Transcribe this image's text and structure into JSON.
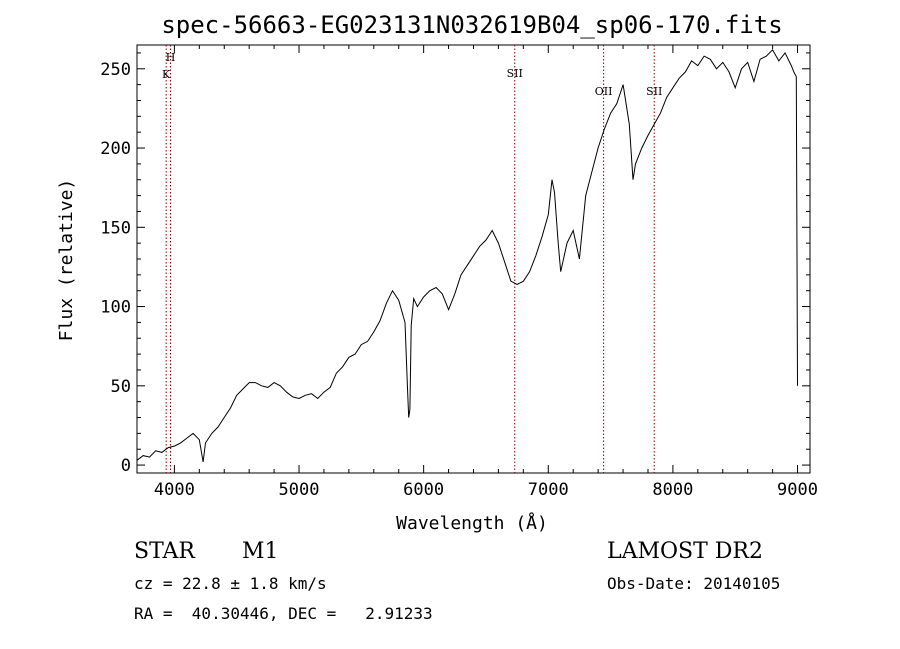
{
  "chart_data": {
    "type": "line",
    "title": "spec-56663-EG023131N032619B04_sp06-170.fits",
    "xlabel": "Wavelength (Å)",
    "ylabel": "Flux (relative)",
    "xlim": [
      3700,
      9100
    ],
    "ylim": [
      -5,
      265
    ],
    "x_ticks": [
      4000,
      5000,
      6000,
      7000,
      8000,
      9000
    ],
    "y_ticks": [
      0,
      50,
      100,
      150,
      200,
      250
    ],
    "series": [
      {
        "x": [
          3700,
          3750,
          3800,
          3850,
          3900,
          3950,
          4000,
          4050,
          4100,
          4150,
          4200,
          4230,
          4250,
          4300,
          4350,
          4400,
          4450,
          4500,
          4550,
          4600,
          4650,
          4700,
          4750,
          4800,
          4850,
          4900,
          4950,
          5000,
          5050,
          5100,
          5150,
          5200,
          5250,
          5300,
          5350,
          5400,
          5450,
          5500,
          5550,
          5600,
          5650,
          5700,
          5750,
          5800,
          5850,
          5870,
          5880,
          5890,
          5900,
          5920,
          5950,
          6000,
          6050,
          6100,
          6150,
          6200,
          6250,
          6300,
          6350,
          6400,
          6450,
          6500,
          6550,
          6600,
          6650,
          6700,
          6750,
          6800,
          6850,
          6900,
          6950,
          7000,
          7030,
          7050,
          7080,
          7100,
          7150,
          7200,
          7250,
          7300,
          7350,
          7400,
          7450,
          7500,
          7550,
          7600,
          7650,
          7680,
          7700,
          7750,
          7800,
          7850,
          7900,
          7950,
          8000,
          8050,
          8100,
          8150,
          8200,
          8250,
          8300,
          8350,
          8400,
          8450,
          8500,
          8550,
          8600,
          8650,
          8700,
          8750,
          8800,
          8850,
          8900,
          8950,
          8970,
          8990,
          9000
        ],
        "y": [
          3,
          6,
          5,
          9,
          8,
          11,
          12,
          14,
          17,
          20,
          16,
          2,
          14,
          20,
          24,
          30,
          36,
          44,
          48,
          52,
          52,
          50,
          49,
          52,
          50,
          46,
          43,
          42,
          44,
          45,
          42,
          46,
          49,
          58,
          62,
          68,
          70,
          76,
          78,
          84,
          91,
          102,
          110,
          104,
          90,
          50,
          30,
          35,
          88,
          105,
          100,
          106,
          110,
          112,
          108,
          98,
          108,
          120,
          126,
          132,
          138,
          142,
          148,
          140,
          128,
          116,
          114,
          116,
          122,
          132,
          144,
          158,
          180,
          172,
          140,
          122,
          140,
          148,
          130,
          170,
          185,
          200,
          212,
          222,
          228,
          240,
          215,
          180,
          190,
          200,
          208,
          215,
          222,
          232,
          238,
          244,
          248,
          255,
          252,
          258,
          256,
          250,
          254,
          248,
          238,
          250,
          254,
          242,
          256,
          258,
          262,
          255,
          260,
          252,
          248,
          245,
          50
        ]
      }
    ],
    "line_markers": [
      {
        "x": 3934,
        "label": "K"
      },
      {
        "x": 3969,
        "label": "H"
      },
      {
        "x": 6731,
        "label": "SII"
      },
      {
        "x": 7444,
        "label": "OII"
      },
      {
        "x": 7850,
        "label": "SII"
      }
    ],
    "marker_color": "#8b0000"
  },
  "info": {
    "classification": "STAR",
    "subclass": "M1",
    "release": "LAMOST DR2",
    "redshift": "cz = 22.8 ± 1.8 km/s",
    "obs_date": "Obs-Date: 20140105",
    "coords": "RA =  40.30446, DEC =   2.91233"
  }
}
